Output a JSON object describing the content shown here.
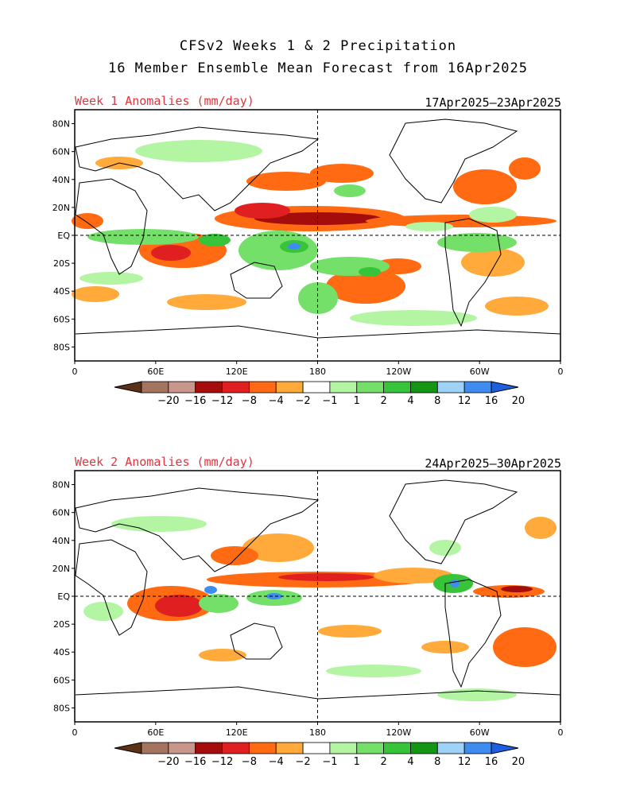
{
  "title_line1": "CFSv2 Weeks 1 & 2 Precipitation",
  "title_line2": "16 Member Ensemble Mean Forecast from 16Apr2025",
  "panels": [
    {
      "label": "Week 1 Anomalies (mm/day)",
      "dates": "17Apr2025—23Apr2025"
    },
    {
      "label": "Week 2 Anomalies (mm/day)",
      "dates": "24Apr2025—30Apr2025"
    }
  ],
  "lat_ticks": [
    "80N",
    "60N",
    "40N",
    "20N",
    "EQ",
    "20S",
    "40S",
    "60S",
    "80S"
  ],
  "lon_ticks": [
    "0",
    "60E",
    "120E",
    "180",
    "120W",
    "60W",
    "0"
  ],
  "colorbar": {
    "labels": [
      "−20",
      "−16",
      "−12",
      "−8",
      "−4",
      "−2",
      "−1",
      "1",
      "2",
      "4",
      "8",
      "12",
      "16",
      "20"
    ],
    "colors": [
      "#5c3117",
      "#a47461",
      "#c8968b",
      "#a50d0d",
      "#e02020",
      "#ff6a13",
      "#ffaa3a",
      "#ffffff",
      "#b3f5a3",
      "#74e06a",
      "#38c43a",
      "#149614",
      "#9fd2f7",
      "#3f8cf0",
      "#1d5fe0"
    ]
  },
  "colors": {
    "dry_strong": "#a50d0d",
    "dry_red": "#e02020",
    "dry_orange": "#ff6a13",
    "dry_light": "#ffaa3a",
    "wet_light": "#b3f5a3",
    "wet_med": "#74e06a",
    "wet_strong": "#38c43a",
    "wet_dark": "#149614",
    "wet_blue": "#3f8cf0"
  }
}
